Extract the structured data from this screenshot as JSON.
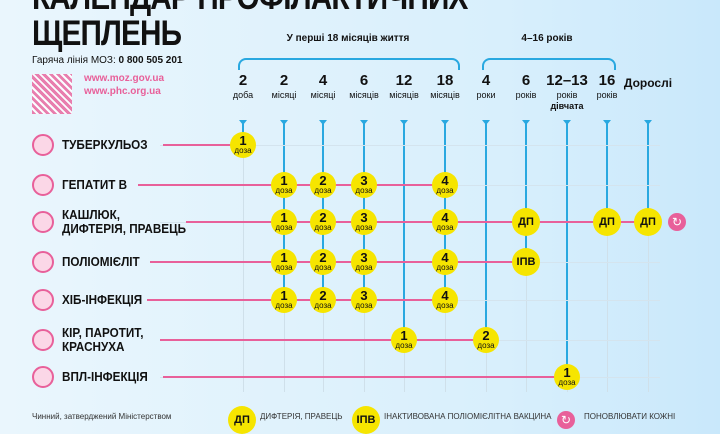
{
  "header": {
    "title_line1": "КАЛЕНДАР ПРОФІЛАКТИЧНИХ",
    "title_line2": "ЩЕПЛЕНЬ",
    "hotline_label": "Гаряча лінія МОЗ:",
    "hotline_number": "0 800 505 201",
    "url1": "www.moz.gov.ua",
    "url2": "www.phc.org.ua"
  },
  "groups": [
    {
      "label": "У перші 18 місяців життя"
    },
    {
      "label": "4–16 років"
    }
  ],
  "columns": [
    {
      "n": "2",
      "unit": "доба",
      "last_row": 0
    },
    {
      "n": "2",
      "unit": "місяці",
      "last_row": 4
    },
    {
      "n": "4",
      "unit": "місяці",
      "last_row": 4
    },
    {
      "n": "6",
      "unit": "місяців",
      "last_row": 4
    },
    {
      "n": "12",
      "unit": "місяців",
      "last_row": 5
    },
    {
      "n": "18",
      "unit": "місяців",
      "last_row": 4
    },
    {
      "n": "4",
      "unit": "роки",
      "last_row": 5
    },
    {
      "n": "6",
      "unit": "років",
      "last_row": 3
    },
    {
      "n": "12–13",
      "unit": "років",
      "extra": "дівчата",
      "last_row": 6
    },
    {
      "n": "16",
      "unit": "років",
      "last_row": 2
    },
    {
      "n": "Дорослі",
      "unit": "",
      "last_row": 2
    }
  ],
  "rows": [
    {
      "label": "ТУБЕРКУЛЬОЗ",
      "icon": "bacteria-icon",
      "doses": [
        {
          "col": 0,
          "n": "1",
          "t": "доза"
        }
      ]
    },
    {
      "label": "ГЕПАТИТ В",
      "icon": "virus-icon",
      "doses": [
        {
          "col": 1,
          "n": "1",
          "t": "доза"
        },
        {
          "col": 2,
          "n": "2",
          "t": "доза"
        },
        {
          "col": 3,
          "n": "3",
          "t": "доза"
        },
        {
          "col": 5,
          "n": "4",
          "t": "доза"
        }
      ]
    },
    {
      "label": "КАШЛЮК,\nДИФТЕРІЯ, ПРАВЕЦЬ",
      "icon": "bacteria-icon",
      "doses": [
        {
          "col": 1,
          "n": "1",
          "t": "доза"
        },
        {
          "col": 2,
          "n": "2",
          "t": "доза"
        },
        {
          "col": 3,
          "n": "3",
          "t": "доза"
        },
        {
          "col": 5,
          "n": "4",
          "t": "доза"
        },
        {
          "col": 7,
          "tag": "ДП"
        },
        {
          "col": 9,
          "tag": "ДП"
        },
        {
          "col": 10,
          "tag": "ДП"
        }
      ],
      "refresh": true
    },
    {
      "label": "ПОЛІОМІЄЛІТ",
      "icon": "virus-icon",
      "doses": [
        {
          "col": 1,
          "n": "1",
          "t": "доза"
        },
        {
          "col": 2,
          "n": "2",
          "t": "доза"
        },
        {
          "col": 3,
          "n": "3",
          "t": "доза"
        },
        {
          "col": 5,
          "n": "4",
          "t": "доза"
        },
        {
          "col": 7,
          "tag": "ІПВ"
        }
      ]
    },
    {
      "label": "ХІБ-ІНФЕКЦІЯ",
      "icon": "bacteria-icon",
      "doses": [
        {
          "col": 1,
          "n": "1",
          "t": "доза"
        },
        {
          "col": 2,
          "n": "2",
          "t": "доза"
        },
        {
          "col": 3,
          "n": "3",
          "t": "доза"
        },
        {
          "col": 5,
          "n": "4",
          "t": "доза"
        }
      ]
    },
    {
      "label": "КІР, ПАРОТИТ,\nКРАСНУХА",
      "icon": "virus-icon",
      "doses": [
        {
          "col": 4,
          "n": "1",
          "t": "доза"
        },
        {
          "col": 6,
          "n": "2",
          "t": "доза"
        }
      ]
    },
    {
      "label": "ВПЛ-ІНФЕКЦІЯ",
      "icon": "virus-icon",
      "doses": [
        {
          "col": 8,
          "n": "1",
          "t": "доза"
        }
      ]
    }
  ],
  "legend": {
    "note": "Чинний, затверджений Міністерством",
    "dp_tag": "ДП",
    "dp": "ДИФТЕРІЯ, ПРАВЕЦЬ",
    "ipv_tag": "ІПВ",
    "ipv": "ІНАКТИВОВАНА ПОЛІОМІЄЛІТНА ВАКЦИНА",
    "refresh": "ПОНОВЛЮВАТИ КОЖНІ"
  },
  "colors": {
    "yellow": "#f6e500",
    "pink": "#e8609a",
    "blue": "#29a8e0"
  }
}
